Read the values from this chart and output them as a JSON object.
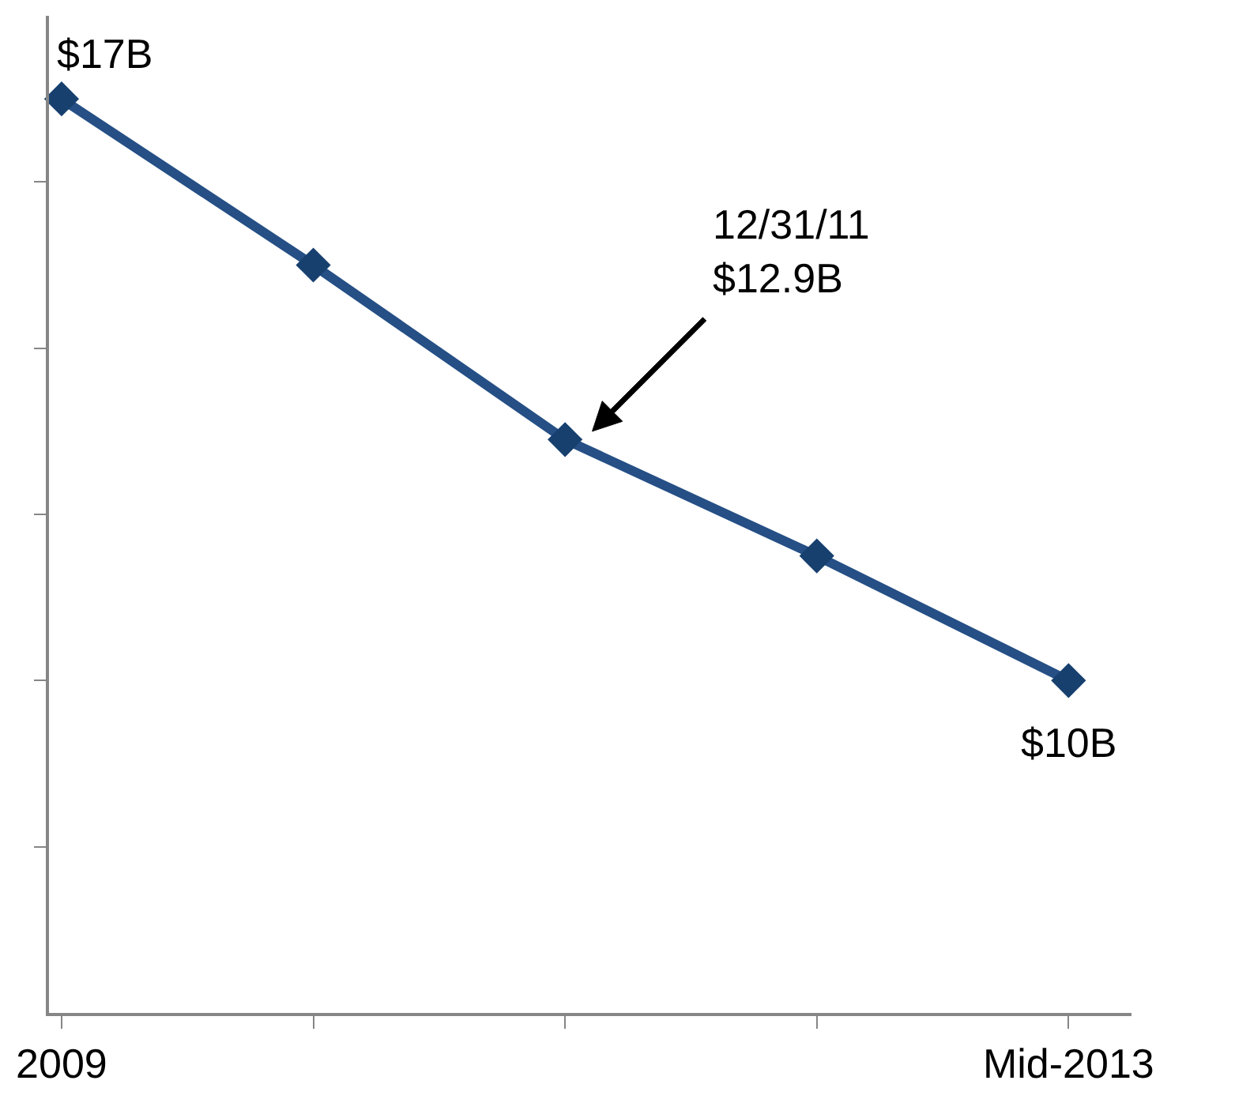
{
  "chart_data": {
    "type": "line",
    "categories": [
      "2009",
      null,
      null,
      null,
      "Mid-2013"
    ],
    "series": [
      {
        "color": "#254f85",
        "values": [
          17,
          15,
          12.9,
          11.5,
          10
        ],
        "value_labels": [
          "$17B",
          null,
          null,
          null,
          "$10B"
        ]
      }
    ],
    "annotations": [
      "12/31/11\n$12.9B"
    ],
    "ylim": [
      6,
      18
    ],
    "yticks": [
      {
        "value": 8,
        "label": null
      },
      {
        "value": 10,
        "label": null
      },
      {
        "value": 12,
        "label": null
      },
      {
        "value": 14,
        "label": null
      },
      {
        "value": 16,
        "label": null
      }
    ],
    "tick_labels": "x",
    "marker": "diamond",
    "line_style": "solid"
  }
}
